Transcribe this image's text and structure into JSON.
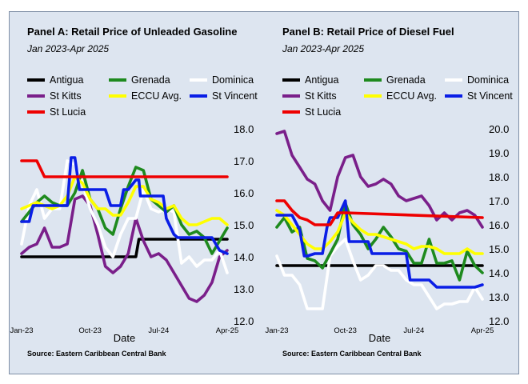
{
  "chart_data": [
    {
      "type": "line",
      "title": "Panel A: Retail Price of Unleaded Gasoline",
      "subtitle": "Jan 2023-Apr 2025",
      "xlabel": "Date",
      "x_tick_labels": [
        "Jan-23",
        "Oct-23",
        "Jul-24",
        "Apr-25"
      ],
      "x_tick_months": [
        0,
        9,
        18,
        27
      ],
      "y_ticks": [
        "12.0",
        "13.0",
        "14.0",
        "15.0",
        "16.0",
        "17.0",
        "18.0"
      ],
      "ylim": [
        12,
        18
      ],
      "y_axis_side": "right",
      "x_start": "Jan-23",
      "x_end": "Apr-25",
      "source": "Source: Eastern Caribbean Central Bank",
      "grid": false,
      "legend_position": "top",
      "series": [
        {
          "name": "Antigua",
          "color": "#000000",
          "x": [
            0,
            15,
            15.4,
            27
          ],
          "values": [
            14.0,
            14.0,
            14.55,
            14.55
          ]
        },
        {
          "name": "Grenada",
          "color": "#1e8a1e",
          "x": [
            0,
            1,
            2,
            3,
            4,
            5,
            6,
            7,
            8,
            9,
            10,
            11,
            12,
            13,
            14,
            15,
            16,
            17,
            18,
            19,
            20,
            21,
            22,
            23,
            24,
            25,
            26,
            27
          ],
          "values": [
            15.1,
            15.4,
            15.7,
            15.9,
            15.7,
            15.6,
            15.6,
            16.0,
            16.7,
            15.8,
            15.5,
            14.9,
            14.7,
            15.5,
            16.2,
            16.8,
            16.7,
            15.8,
            15.6,
            15.4,
            15.6,
            15.0,
            14.7,
            14.8,
            14.6,
            14.1,
            14.5,
            14.9
          ]
        },
        {
          "name": "Dominica",
          "color": "#ffffff",
          "x": [
            0,
            1,
            2,
            3,
            4,
            5,
            6,
            7,
            8,
            9,
            10,
            11,
            12,
            13,
            14,
            15,
            16,
            17,
            18,
            19,
            20,
            21,
            22,
            23,
            24,
            25,
            26,
            27
          ],
          "values": [
            14.4,
            15.6,
            16.1,
            15.2,
            15.5,
            15.5,
            17.0,
            16.9,
            16.3,
            15.5,
            15.0,
            14.3,
            14.0,
            14.7,
            15.2,
            15.2,
            16.1,
            15.5,
            15.4,
            15.5,
            15.4,
            13.8,
            14.0,
            13.7,
            13.9,
            13.9,
            14.2,
            13.5
          ]
        },
        {
          "name": "St Kitts",
          "color": "#7a1f8a",
          "x": [
            0,
            1,
            2,
            3,
            4,
            5,
            6,
            7,
            8,
            9,
            10,
            11,
            12,
            13,
            14,
            15,
            16,
            17,
            18,
            19,
            20,
            21,
            22,
            23,
            24,
            25,
            26,
            27
          ],
          "values": [
            14.1,
            14.3,
            14.4,
            14.9,
            14.3,
            14.3,
            14.4,
            15.8,
            15.9,
            15.6,
            14.7,
            13.7,
            13.5,
            13.7,
            14.1,
            15.2,
            14.5,
            14.0,
            14.1,
            13.9,
            13.5,
            13.1,
            12.7,
            12.6,
            12.8,
            13.2,
            14.0,
            14.2
          ]
        },
        {
          "name": "ECCU Avg.",
          "color": "#ffff00",
          "x": [
            0,
            1,
            2,
            3,
            4,
            5,
            6,
            7,
            8,
            9,
            10,
            11,
            12,
            13,
            14,
            15,
            16,
            17,
            18,
            19,
            20,
            21,
            22,
            23,
            24,
            25,
            26,
            27
          ],
          "values": [
            15.5,
            15.6,
            15.7,
            15.6,
            15.5,
            15.6,
            15.9,
            16.5,
            16.3,
            15.8,
            15.5,
            15.5,
            15.3,
            15.3,
            15.7,
            16.2,
            16.2,
            15.8,
            15.7,
            15.5,
            15.6,
            15.2,
            15.0,
            15.0,
            15.1,
            15.2,
            15.2,
            15.0
          ]
        },
        {
          "name": "St Vincent",
          "color": "#0a1ee6",
          "x": [
            0,
            1,
            1.5,
            2,
            3,
            4,
            5,
            6,
            6.5,
            7,
            7.6,
            8,
            9,
            10,
            11,
            11.7,
            12,
            12.5,
            13,
            13.4,
            14,
            15,
            15.4,
            15.6,
            16,
            17,
            18,
            18.6,
            19,
            20,
            20.5,
            21,
            22,
            23,
            24,
            25,
            26,
            27
          ],
          "values": [
            15.1,
            15.1,
            15.6,
            15.6,
            15.6,
            15.6,
            15.6,
            15.6,
            17.1,
            17.1,
            16.1,
            16.1,
            16.1,
            16.1,
            16.1,
            15.6,
            15.6,
            15.6,
            15.6,
            16.1,
            16.1,
            16.4,
            16.4,
            15.9,
            15.9,
            15.9,
            15.9,
            15.9,
            15.2,
            14.7,
            14.6,
            14.6,
            14.6,
            14.6,
            14.6,
            14.6,
            14.2,
            14.1
          ]
        },
        {
          "name": "St Lucia",
          "color": "#ee0000",
          "x": [
            0,
            2,
            3,
            27
          ],
          "values": [
            17.0,
            17.0,
            16.5,
            16.5
          ]
        }
      ]
    },
    {
      "type": "line",
      "title": "Panel B: Retail Price of Diesel Fuel",
      "subtitle": "Jan 2023-Apr 2025",
      "xlabel": "Date",
      "x_tick_labels": [
        "Jan-23",
        "Oct-23",
        "Jul-24",
        "Apr-25"
      ],
      "x_tick_months": [
        0,
        9,
        18,
        27
      ],
      "y_ticks": [
        "12.0",
        "13.0",
        "14.0",
        "15.0",
        "16.0",
        "17.0",
        "18.0",
        "19.0",
        "20.0"
      ],
      "ylim": [
        12,
        20
      ],
      "y_axis_side": "right",
      "x_start": "Jan-23",
      "x_end": "Apr-25",
      "source": "Source: Eastern Caribbean Central Bank",
      "grid": false,
      "legend_position": "top",
      "series": [
        {
          "name": "Antigua",
          "color": "#000000",
          "x": [
            0,
            27
          ],
          "values": [
            14.3,
            14.3
          ]
        },
        {
          "name": "Grenada",
          "color": "#1e8a1e",
          "x": [
            0,
            1,
            2,
            3,
            4,
            5,
            6,
            7,
            8,
            9,
            10,
            11,
            12,
            13,
            14,
            15,
            16,
            17,
            18,
            19,
            20,
            21,
            22,
            23,
            24,
            25,
            26,
            27
          ],
          "values": [
            15.9,
            16.3,
            15.7,
            15.9,
            14.6,
            14.5,
            14.2,
            14.8,
            15.4,
            16.9,
            16.0,
            15.6,
            15.0,
            15.4,
            15.9,
            15.5,
            15.0,
            14.9,
            14.4,
            14.4,
            15.4,
            14.4,
            14.4,
            14.5,
            13.7,
            14.9,
            14.3,
            14.0
          ]
        },
        {
          "name": "Dominica",
          "color": "#ffffff",
          "x": [
            0,
            1,
            2,
            3,
            4,
            5,
            6,
            7,
            8,
            9,
            10,
            11,
            12,
            13,
            14,
            15,
            16,
            17,
            18,
            19,
            20,
            21,
            22,
            23,
            24,
            25,
            26,
            27
          ],
          "values": [
            14.7,
            13.9,
            13.9,
            13.5,
            12.5,
            12.5,
            12.5,
            14.7,
            15.1,
            15.4,
            14.5,
            13.7,
            13.9,
            14.3,
            14.3,
            14.1,
            14.1,
            13.7,
            13.5,
            13.5,
            13.0,
            12.5,
            12.7,
            12.7,
            12.8,
            12.8,
            13.4,
            12.9
          ]
        },
        {
          "name": "St Kitts",
          "color": "#7a1f8a",
          "x": [
            0,
            1,
            2,
            3,
            4,
            5,
            6,
            7,
            8,
            9,
            10,
            11,
            12,
            13,
            14,
            15,
            16,
            17,
            18,
            19,
            20,
            21,
            22,
            23,
            24,
            25,
            26,
            27
          ],
          "values": [
            19.8,
            19.9,
            18.9,
            18.4,
            17.9,
            17.7,
            17.0,
            16.6,
            18.0,
            18.8,
            18.9,
            18.0,
            17.6,
            17.7,
            17.9,
            17.7,
            17.2,
            17.0,
            17.1,
            17.2,
            16.8,
            16.2,
            16.5,
            16.2,
            16.5,
            16.6,
            16.4,
            15.9
          ]
        },
        {
          "name": "ECCU Avg.",
          "color": "#ffff00",
          "x": [
            0,
            1,
            2,
            3,
            4,
            5,
            6,
            7,
            8,
            9,
            10,
            11,
            12,
            13,
            14,
            15,
            16,
            17,
            18,
            19,
            20,
            21,
            22,
            23,
            24,
            25,
            26,
            27
          ],
          "values": [
            16.6,
            16.4,
            16.0,
            15.6,
            15.2,
            15.0,
            15.0,
            15.3,
            15.7,
            16.5,
            16.1,
            15.8,
            15.6,
            15.6,
            15.5,
            15.4,
            15.3,
            15.2,
            15.0,
            15.1,
            15.1,
            15.0,
            14.8,
            14.8,
            14.8,
            15.0,
            14.8,
            14.8
          ]
        },
        {
          "name": "St Vincent",
          "color": "#0a1ee6",
          "x": [
            0,
            1,
            2,
            3,
            3.6,
            4,
            5,
            6,
            6.6,
            7,
            8,
            9,
            9.5,
            10,
            11,
            12,
            12.5,
            13,
            14,
            15,
            16,
            17,
            17.5,
            18,
            19,
            20,
            21,
            21.5,
            22,
            23,
            24,
            25,
            26,
            27
          ],
          "values": [
            16.4,
            16.4,
            16.4,
            15.8,
            14.7,
            14.7,
            14.8,
            14.8,
            15.9,
            16.3,
            16.3,
            17.0,
            15.3,
            15.3,
            15.3,
            15.3,
            14.8,
            14.8,
            14.8,
            14.8,
            14.8,
            14.8,
            13.7,
            13.7,
            13.7,
            13.7,
            13.4,
            13.4,
            13.4,
            13.4,
            13.4,
            13.4,
            13.4,
            13.5
          ]
        },
        {
          "name": "St Lucia",
          "color": "#ee0000",
          "x": [
            0,
            1,
            2,
            3,
            4,
            5,
            6,
            7,
            8,
            9,
            27
          ],
          "values": [
            17.0,
            17.0,
            16.6,
            16.3,
            16.2,
            16.0,
            16.0,
            16.0,
            16.5,
            16.5,
            16.3
          ]
        }
      ]
    }
  ]
}
